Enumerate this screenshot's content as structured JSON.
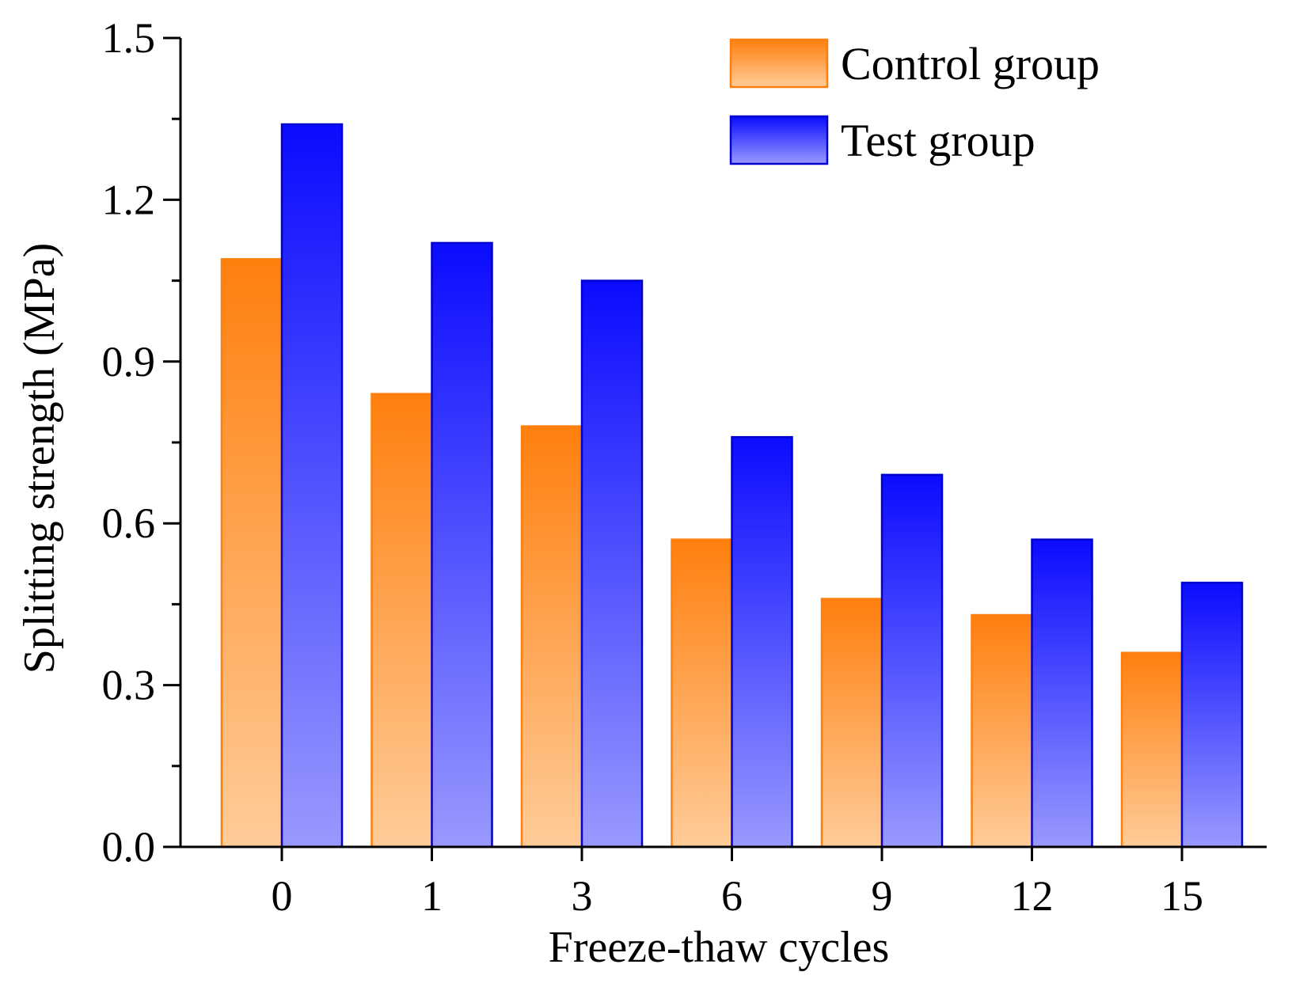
{
  "chart_data": {
    "type": "bar",
    "title": "",
    "xlabel": "Freeze-thaw cycles",
    "ylabel": "Splitting strength (MPa)",
    "categories": [
      "0",
      "1",
      "3",
      "6",
      "9",
      "12",
      "15"
    ],
    "ylim": [
      0,
      1.5
    ],
    "yticks": [
      "0.0",
      "0.3",
      "0.6",
      "0.9",
      "1.2",
      "1.5"
    ],
    "series": [
      {
        "name": "Control group",
        "values": [
          1.09,
          0.84,
          0.78,
          0.57,
          0.46,
          0.43,
          0.36
        ],
        "color_top": "#ff7f0e",
        "color_bottom": "#ffcc99",
        "stroke": "#ff7f0e"
      },
      {
        "name": "Test group",
        "values": [
          1.34,
          1.12,
          1.05,
          0.76,
          0.69,
          0.57,
          0.49
        ],
        "color_top": "#0b0bff",
        "color_bottom": "#9999ff",
        "stroke": "#0000cc"
      }
    ],
    "grid": false,
    "legend_position": "top-right"
  }
}
